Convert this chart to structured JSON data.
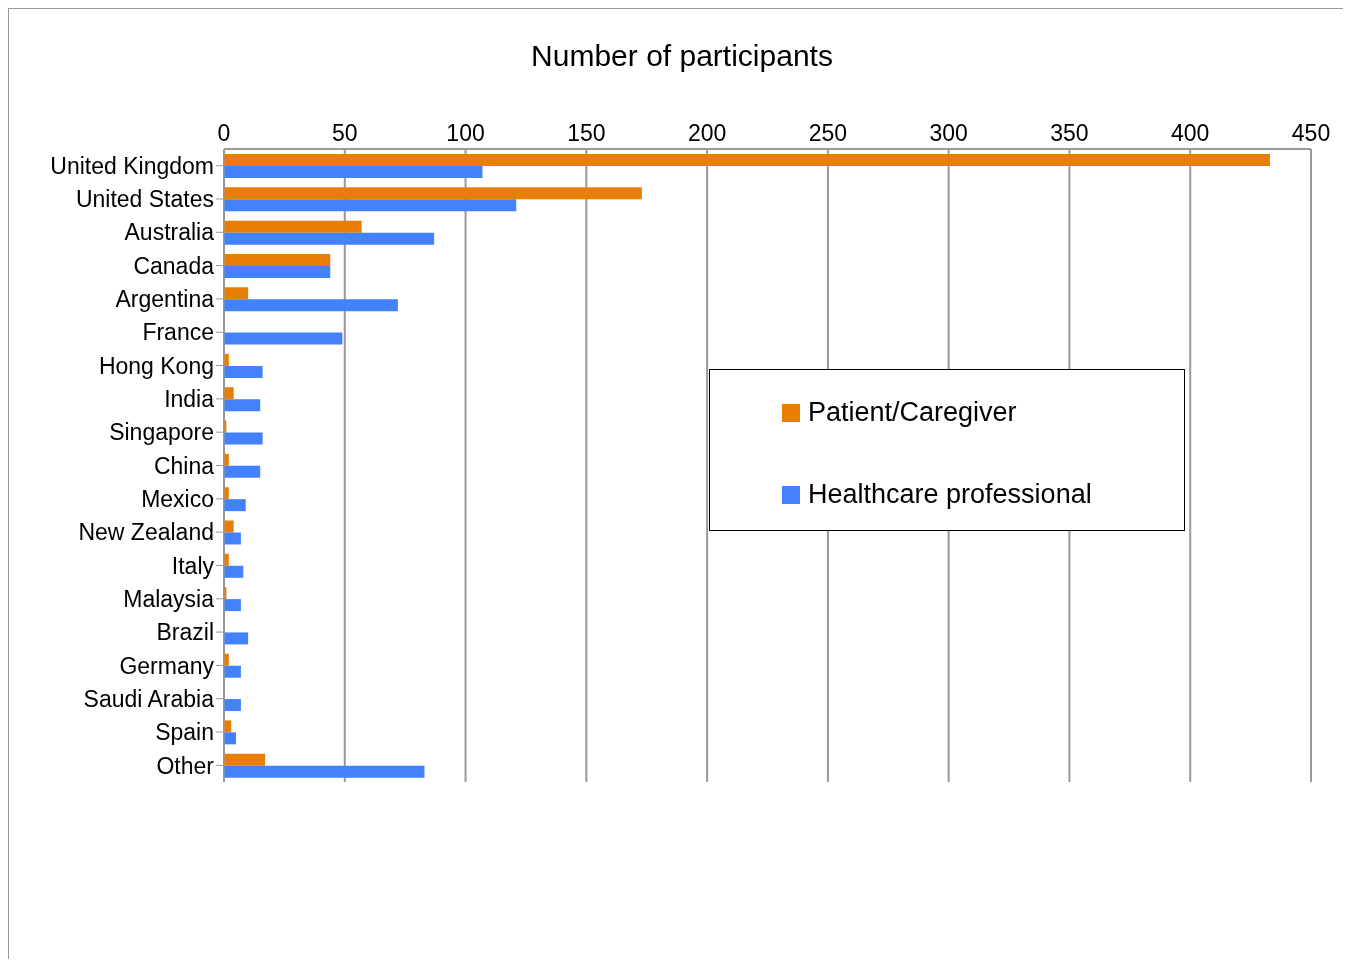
{
  "chart_data": {
    "type": "bar",
    "orientation": "horizontal",
    "title": "Number of participants",
    "categories": [
      "United Kingdom",
      "United States",
      "Australia",
      "Canada",
      "Argentina",
      "France",
      "Hong Kong",
      "India",
      "Singapore",
      "China",
      "Mexico",
      "New Zealand",
      "Italy",
      "Malaysia",
      "Brazil",
      "Germany",
      "Saudi Arabia",
      "Spain",
      "Other"
    ],
    "series": [
      {
        "name": "Patient/Caregiver",
        "color": "#e97e06",
        "values": [
          433,
          173,
          57,
          44,
          10,
          0,
          2,
          4,
          1,
          2,
          2,
          4,
          2,
          1,
          0,
          2,
          0,
          3,
          17
        ]
      },
      {
        "name": "Healthcare professional",
        "color": "#4382fc",
        "values": [
          107,
          121,
          87,
          44,
          72,
          49,
          16,
          15,
          16,
          15,
          9,
          7,
          8,
          7,
          10,
          7,
          7,
          5,
          83
        ]
      }
    ],
    "xlim": [
      0,
      450
    ],
    "xticks": [
      0,
      50,
      100,
      150,
      200,
      250,
      300,
      350,
      400,
      450
    ],
    "grid": "x",
    "legend": "right"
  }
}
